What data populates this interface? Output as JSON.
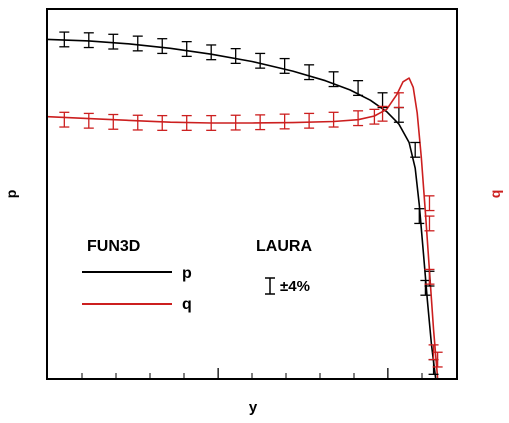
{
  "chart_data": {
    "type": "line",
    "xlabel": "y",
    "ylabel_left": "p",
    "ylabel_right": "q",
    "xlim": [
      0,
      1
    ],
    "ylim": [
      0,
      1
    ],
    "x_minor_ticks": 12,
    "x_major_ticks": [
      0.417,
      0.833
    ],
    "legend": {
      "placement": "lower-left",
      "fun3d_label": "FUN3D",
      "laura_label": "LAURA",
      "error_label": "±4%"
    },
    "series": [
      {
        "name": "p",
        "color": "#000000",
        "line": {
          "x": [
            0.0,
            0.1,
            0.2,
            0.3,
            0.4,
            0.5,
            0.6,
            0.68,
            0.74,
            0.79,
            0.83,
            0.86,
            0.885,
            0.9,
            0.91,
            0.92,
            0.93,
            0.94,
            0.95
          ],
          "y": [
            0.92,
            0.916,
            0.908,
            0.896,
            0.88,
            0.86,
            0.834,
            0.808,
            0.783,
            0.755,
            0.724,
            0.69,
            0.64,
            0.57,
            0.47,
            0.34,
            0.21,
            0.09,
            0.0
          ]
        },
        "markers": {
          "x": [
            0.04,
            0.1,
            0.16,
            0.22,
            0.28,
            0.34,
            0.4,
            0.46,
            0.52,
            0.58,
            0.64,
            0.7,
            0.76,
            0.82,
            0.86,
            0.9,
            0.91,
            0.925,
            0.935,
            0.945
          ],
          "y": [
            0.92,
            0.918,
            0.914,
            0.909,
            0.902,
            0.894,
            0.885,
            0.875,
            0.862,
            0.848,
            0.831,
            0.812,
            0.788,
            0.755,
            0.715,
            0.62,
            0.44,
            0.245,
            0.27,
            0.03
          ]
        }
      },
      {
        "name": "q",
        "color": "#cc1f1f",
        "line": {
          "x": [
            0.0,
            0.1,
            0.2,
            0.3,
            0.4,
            0.5,
            0.6,
            0.7,
            0.76,
            0.8,
            0.83,
            0.855,
            0.87,
            0.885,
            0.895,
            0.905,
            0.915,
            0.925,
            0.935,
            0.945,
            0.955
          ],
          "y": [
            0.71,
            0.705,
            0.7,
            0.695,
            0.693,
            0.693,
            0.694,
            0.697,
            0.702,
            0.712,
            0.73,
            0.77,
            0.805,
            0.815,
            0.79,
            0.72,
            0.6,
            0.45,
            0.29,
            0.13,
            0.0
          ]
        },
        "markers": {
          "x": [
            0.04,
            0.1,
            0.16,
            0.22,
            0.28,
            0.34,
            0.4,
            0.46,
            0.52,
            0.58,
            0.64,
            0.7,
            0.76,
            0.8,
            0.82,
            0.86,
            0.935,
            0.935,
            0.935,
            0.945,
            0.955
          ],
          "y": [
            0.702,
            0.699,
            0.696,
            0.694,
            0.693,
            0.693,
            0.693,
            0.694,
            0.695,
            0.697,
            0.699,
            0.702,
            0.706,
            0.71,
            0.718,
            0.755,
            0.475,
            0.42,
            0.275,
            0.07,
            0.05
          ]
        }
      }
    ]
  }
}
